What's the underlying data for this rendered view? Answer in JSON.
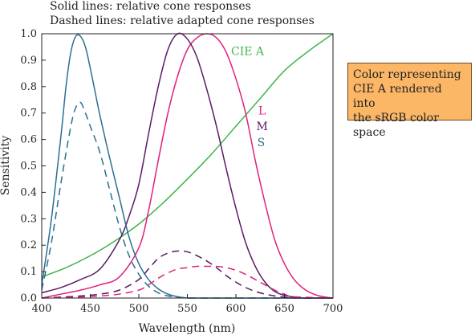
{
  "notes": {
    "solid": "Solid lines: relative cone responses",
    "dashed": "Dashed lines: relative adapted cone responses"
  },
  "callout": {
    "lines": [
      "Color representing",
      "CIE A rendered into",
      "the sRGB color space"
    ],
    "color": "#fbb666"
  },
  "chart_data": {
    "type": "line",
    "xlabel": "Wavelength (nm)",
    "ylabel": "Sensitivity",
    "xlim": [
      400,
      700
    ],
    "ylim": [
      0,
      1
    ],
    "xticks": [
      400,
      450,
      500,
      550,
      600,
      650,
      700
    ],
    "yticks": [
      0,
      0.1,
      0.2,
      0.3,
      0.4,
      0.5,
      0.6,
      0.7,
      0.8,
      0.9,
      1.0
    ],
    "grid": false,
    "series": [
      {
        "name": "CIE A",
        "style": "solid",
        "color": "#3fb54a",
        "x": [
          400,
          425,
          450,
          475,
          500,
          525,
          550,
          575,
          600,
          625,
          650,
          675,
          700
        ],
        "y": [
          0.08,
          0.115,
          0.16,
          0.215,
          0.28,
          0.36,
          0.45,
          0.545,
          0.65,
          0.755,
          0.86,
          0.935,
          1.0
        ]
      },
      {
        "name": "L",
        "style": "solid",
        "color": "#e0207e",
        "x": [
          400,
          420,
          440,
          460,
          480,
          500,
          510,
          520,
          530,
          540,
          550,
          560,
          570,
          580,
          590,
          600,
          610,
          620,
          630,
          640,
          650,
          660,
          670,
          680,
          690,
          700
        ],
        "y": [
          0.0,
          0.015,
          0.03,
          0.05,
          0.08,
          0.19,
          0.33,
          0.52,
          0.7,
          0.84,
          0.94,
          0.985,
          1.0,
          0.985,
          0.93,
          0.83,
          0.7,
          0.52,
          0.36,
          0.22,
          0.13,
          0.07,
          0.035,
          0.015,
          0.005,
          0.0
        ]
      },
      {
        "name": "M",
        "style": "solid",
        "color": "#5a1a66",
        "x": [
          400,
          420,
          440,
          460,
          480,
          490,
          500,
          510,
          520,
          530,
          540,
          550,
          560,
          570,
          580,
          590,
          600,
          610,
          620,
          630,
          640,
          650,
          660,
          670,
          680,
          700
        ],
        "y": [
          0.02,
          0.04,
          0.07,
          0.11,
          0.22,
          0.31,
          0.43,
          0.62,
          0.8,
          0.94,
          1.0,
          0.98,
          0.91,
          0.79,
          0.65,
          0.49,
          0.34,
          0.21,
          0.12,
          0.06,
          0.025,
          0.01,
          0.004,
          0.0,
          0.0,
          0.0
        ]
      },
      {
        "name": "S",
        "style": "solid",
        "color": "#2b6e90",
        "x": [
          400,
          410,
          420,
          425,
          430,
          435,
          440,
          445,
          450,
          455,
          460,
          470,
          480,
          490,
          500,
          510,
          520,
          530,
          540,
          550,
          560,
          570,
          580,
          600,
          700
        ],
        "y": [
          0.05,
          0.3,
          0.62,
          0.8,
          0.93,
          0.99,
          0.99,
          0.95,
          0.87,
          0.78,
          0.69,
          0.53,
          0.38,
          0.23,
          0.13,
          0.07,
          0.035,
          0.015,
          0.005,
          0.0,
          0.0,
          0.0,
          0.0,
          0.0,
          0.0
        ]
      },
      {
        "name": "S adapted",
        "style": "dashed",
        "color": "#2b6e90",
        "x": [
          400,
          410,
          420,
          430,
          435,
          440,
          445,
          450,
          460,
          470,
          480,
          490,
          500,
          510,
          520,
          530,
          540,
          560,
          600,
          700
        ],
        "y": [
          0.03,
          0.21,
          0.44,
          0.65,
          0.72,
          0.74,
          0.7,
          0.65,
          0.55,
          0.41,
          0.27,
          0.16,
          0.09,
          0.045,
          0.02,
          0.008,
          0.003,
          0.0,
          0.0,
          0.0
        ]
      },
      {
        "name": "M adapted",
        "style": "dashed",
        "color": "#5a1a66",
        "x": [
          400,
          440,
          460,
          480,
          500,
          510,
          520,
          530,
          540,
          550,
          560,
          570,
          580,
          590,
          600,
          610,
          620,
          630,
          640,
          650,
          660,
          700
        ],
        "y": [
          0.0,
          0.008,
          0.015,
          0.03,
          0.07,
          0.11,
          0.15,
          0.17,
          0.178,
          0.175,
          0.16,
          0.14,
          0.115,
          0.085,
          0.06,
          0.04,
          0.025,
          0.015,
          0.008,
          0.003,
          0.0,
          0.0
        ]
      },
      {
        "name": "L adapted",
        "style": "dashed",
        "color": "#e0207e",
        "x": [
          400,
          440,
          460,
          480,
          500,
          510,
          520,
          530,
          540,
          550,
          560,
          570,
          580,
          590,
          600,
          610,
          620,
          630,
          640,
          650,
          660,
          700
        ],
        "y": [
          0.0,
          0.004,
          0.008,
          0.015,
          0.03,
          0.05,
          0.075,
          0.095,
          0.11,
          0.115,
          0.12,
          0.12,
          0.12,
          0.115,
          0.105,
          0.09,
          0.07,
          0.05,
          0.03,
          0.015,
          0.005,
          0.0
        ]
      }
    ],
    "labels": [
      {
        "text": "CIE A",
        "color": "#3fb54a",
        "x": 612,
        "y": 0.92
      },
      {
        "text": "L",
        "color": "#e0207e",
        "x": 627,
        "y": 0.695
      },
      {
        "text": "M",
        "color": "#5a1a66",
        "x": 627,
        "y": 0.635
      },
      {
        "text": "S",
        "color": "#2b6e90",
        "x": 626,
        "y": 0.575
      }
    ]
  }
}
